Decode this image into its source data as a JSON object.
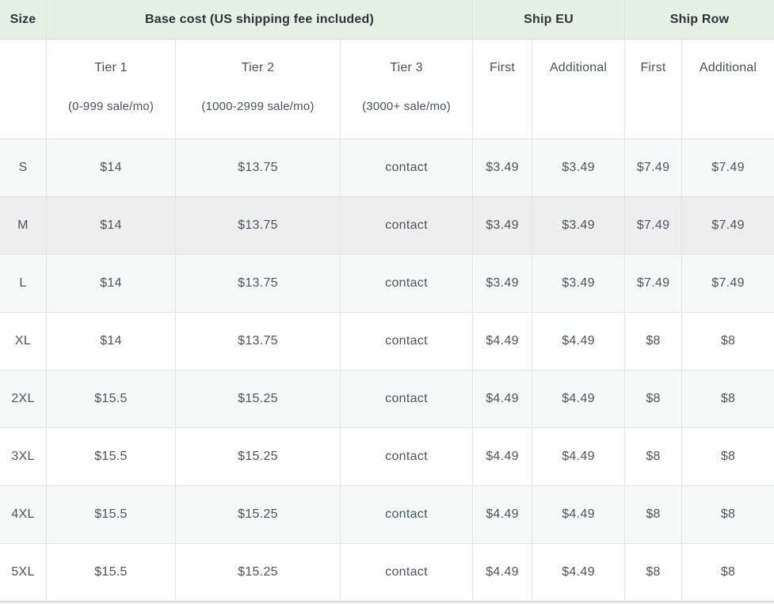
{
  "meta": {
    "accent_green": "#e4f2e6",
    "stripe_gray": "#f7f8f8",
    "highlight_gray": "#eeeeef",
    "text_dark": "#2e3338",
    "text_body": "#4c5560"
  },
  "table": {
    "header": {
      "size_label": "Size",
      "base_cost_label": "Base cost (US shipping fee included)",
      "ship_eu_label": "Ship EU",
      "ship_row_label": "Ship Row"
    },
    "subheader": {
      "tiers": [
        {
          "title": "Tier 1",
          "range": "(0-999 sale/mo)"
        },
        {
          "title": "Tier 2",
          "range": "(1000-2999 sale/mo)"
        },
        {
          "title": "Tier 3",
          "range": "(3000+ sale/mo)"
        }
      ],
      "eu_first": "First",
      "eu_additional": "Additional",
      "row_first": "First",
      "row_additional": "Additional"
    },
    "rows": [
      {
        "size": "S",
        "tier1": "$14",
        "tier2": "$13.75",
        "tier3": "contact",
        "eu_first": "$3.49",
        "eu_additional": "$3.49",
        "row_first": "$7.49",
        "row_additional": "$7.49",
        "highlight": false
      },
      {
        "size": "M",
        "tier1": "$14",
        "tier2": "$13.75",
        "tier3": "contact",
        "eu_first": "$3.49",
        "eu_additional": "$3.49",
        "row_first": "$7.49",
        "row_additional": "$7.49",
        "highlight": true
      },
      {
        "size": "L",
        "tier1": "$14",
        "tier2": "$13.75",
        "tier3": "contact",
        "eu_first": "$3.49",
        "eu_additional": "$3.49",
        "row_first": "$7.49",
        "row_additional": "$7.49",
        "highlight": false
      },
      {
        "size": "XL",
        "tier1": "$14",
        "tier2": "$13.75",
        "tier3": "contact",
        "eu_first": "$4.49",
        "eu_additional": "$4.49",
        "row_first": "$8",
        "row_additional": "$8",
        "highlight": false
      },
      {
        "size": "2XL",
        "tier1": "$15.5",
        "tier2": "$15.25",
        "tier3": "contact",
        "eu_first": "$4.49",
        "eu_additional": "$4.49",
        "row_first": "$8",
        "row_additional": "$8",
        "highlight": false
      },
      {
        "size": "3XL",
        "tier1": "$15.5",
        "tier2": "$15.25",
        "tier3": "contact",
        "eu_first": "$4.49",
        "eu_additional": "$4.49",
        "row_first": "$8",
        "row_additional": "$8",
        "highlight": false
      },
      {
        "size": "4XL",
        "tier1": "$15.5",
        "tier2": "$15.25",
        "tier3": "contact",
        "eu_first": "$4.49",
        "eu_additional": "$4.49",
        "row_first": "$8",
        "row_additional": "$8",
        "highlight": false
      },
      {
        "size": "5XL",
        "tier1": "$15.5",
        "tier2": "$15.25",
        "tier3": "contact",
        "eu_first": "$4.49",
        "eu_additional": "$4.49",
        "row_first": "$8",
        "row_additional": "$8",
        "highlight": false
      }
    ]
  }
}
